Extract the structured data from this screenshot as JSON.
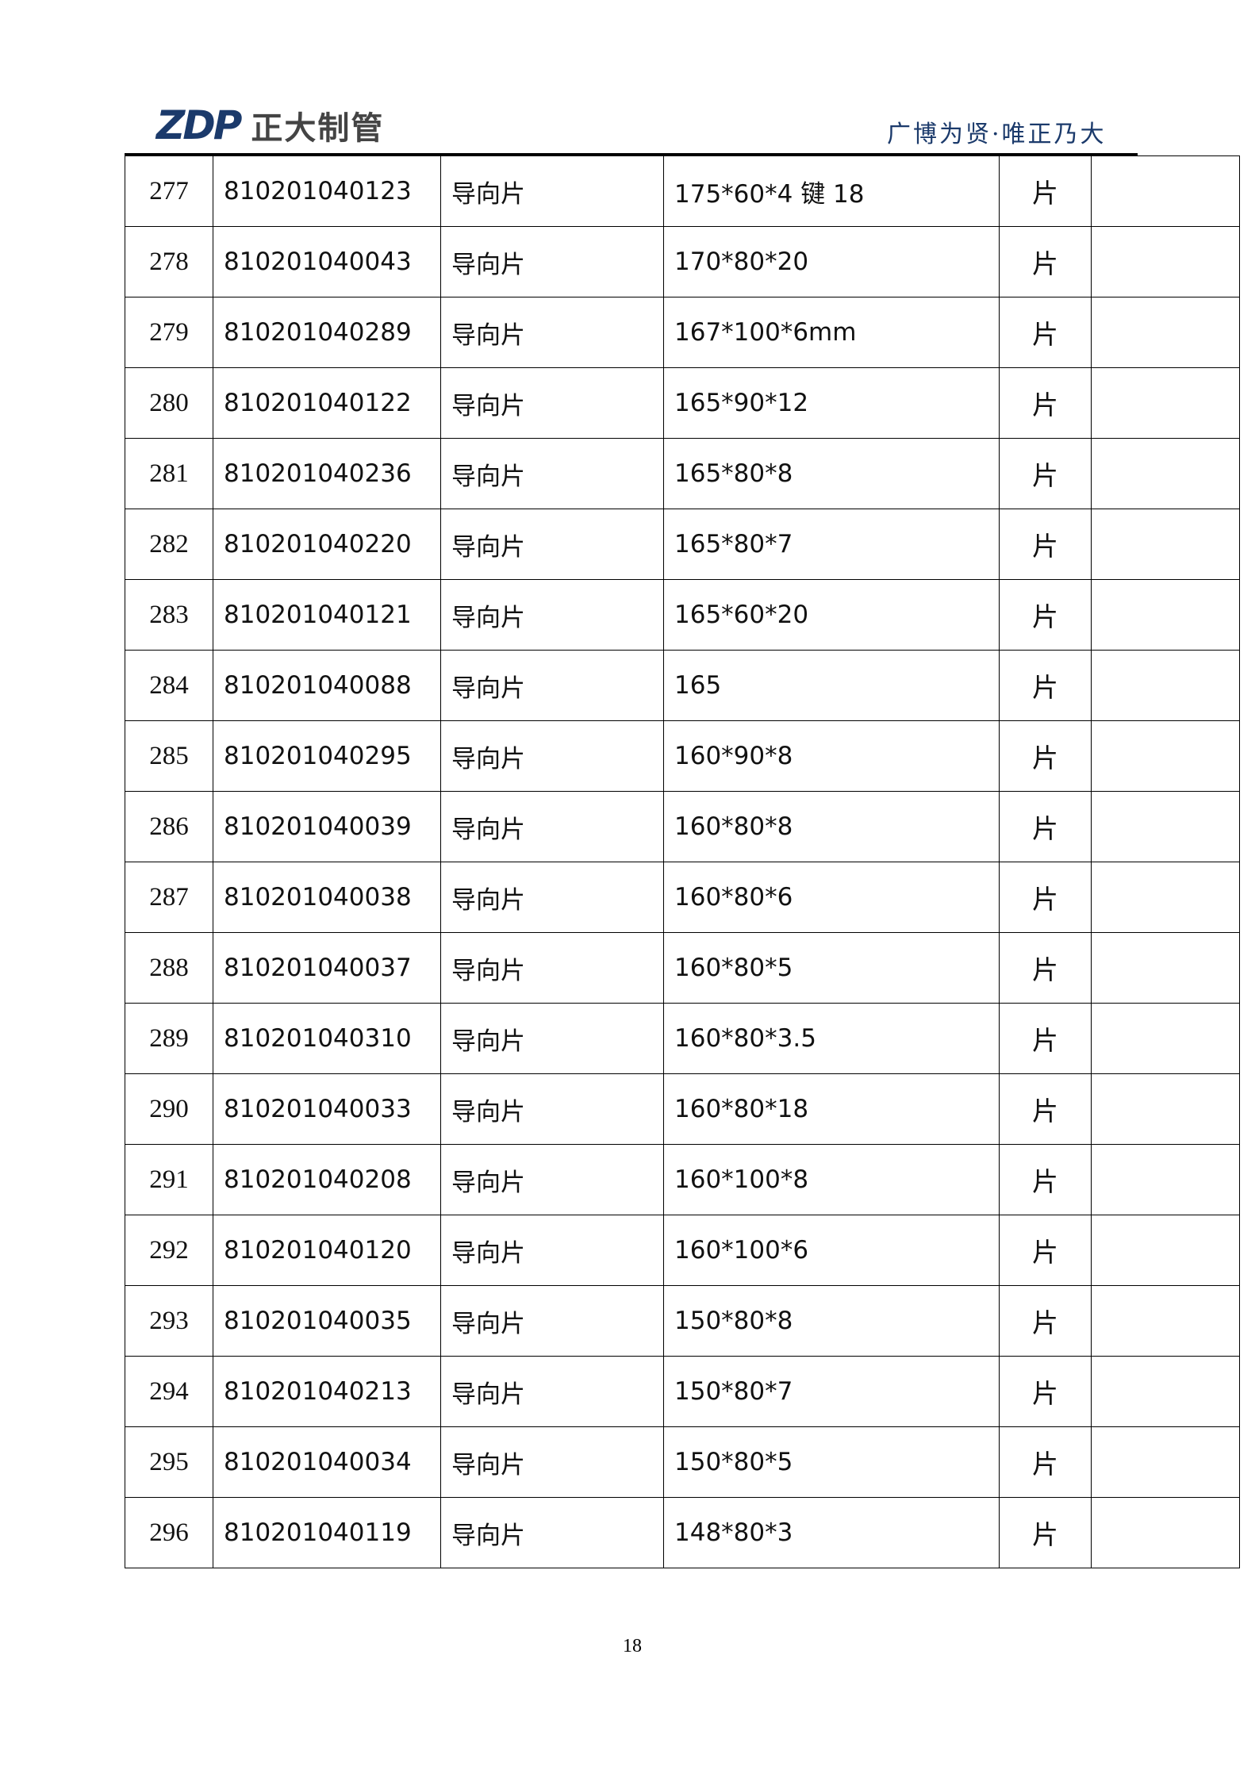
{
  "header": {
    "logo_mark": "ZDP",
    "logo_text": "正大制管",
    "slogan": "广博为贤·唯正乃大",
    "brand_color": "#1b3a6b"
  },
  "table": {
    "rows": [
      {
        "no": "277",
        "code": "810201040123",
        "name": "导向片",
        "spec": "175*60*4 键 18",
        "unit": "片",
        "note": ""
      },
      {
        "no": "278",
        "code": "810201040043",
        "name": "导向片",
        "spec": "170*80*20",
        "unit": "片",
        "note": ""
      },
      {
        "no": "279",
        "code": "810201040289",
        "name": "导向片",
        "spec": "167*100*6mm",
        "unit": "片",
        "note": ""
      },
      {
        "no": "280",
        "code": "810201040122",
        "name": "导向片",
        "spec": "165*90*12",
        "unit": "片",
        "note": ""
      },
      {
        "no": "281",
        "code": "810201040236",
        "name": "导向片",
        "spec": "165*80*8",
        "unit": "片",
        "note": ""
      },
      {
        "no": "282",
        "code": "810201040220",
        "name": "导向片",
        "spec": "165*80*7",
        "unit": "片",
        "note": ""
      },
      {
        "no": "283",
        "code": "810201040121",
        "name": "导向片",
        "spec": "165*60*20",
        "unit": "片",
        "note": ""
      },
      {
        "no": "284",
        "code": "810201040088",
        "name": "导向片",
        "spec": "165",
        "unit": "片",
        "note": ""
      },
      {
        "no": "285",
        "code": "810201040295",
        "name": "导向片",
        "spec": "160*90*8",
        "unit": "片",
        "note": ""
      },
      {
        "no": "286",
        "code": "810201040039",
        "name": "导向片",
        "spec": "160*80*8",
        "unit": "片",
        "note": ""
      },
      {
        "no": "287",
        "code": "810201040038",
        "name": "导向片",
        "spec": "160*80*6",
        "unit": "片",
        "note": ""
      },
      {
        "no": "288",
        "code": "810201040037",
        "name": "导向片",
        "spec": "160*80*5",
        "unit": "片",
        "note": ""
      },
      {
        "no": "289",
        "code": "810201040310",
        "name": "导向片",
        "spec": "160*80*3.5",
        "unit": "片",
        "note": ""
      },
      {
        "no": "290",
        "code": "810201040033",
        "name": "导向片",
        "spec": "160*80*18",
        "unit": "片",
        "note": ""
      },
      {
        "no": "291",
        "code": "810201040208",
        "name": "导向片",
        "spec": "160*100*8",
        "unit": "片",
        "note": ""
      },
      {
        "no": "292",
        "code": "810201040120",
        "name": "导向片",
        "spec": "160*100*6",
        "unit": "片",
        "note": ""
      },
      {
        "no": "293",
        "code": "810201040035",
        "name": "导向片",
        "spec": "150*80*8",
        "unit": "片",
        "note": ""
      },
      {
        "no": "294",
        "code": "810201040213",
        "name": "导向片",
        "spec": "150*80*7",
        "unit": "片",
        "note": ""
      },
      {
        "no": "295",
        "code": "810201040034",
        "name": "导向片",
        "spec": "150*80*5",
        "unit": "片",
        "note": ""
      },
      {
        "no": "296",
        "code": "810201040119",
        "name": "导向片",
        "spec": "148*80*3",
        "unit": "片",
        "note": ""
      }
    ]
  },
  "footer": {
    "page_number": "18"
  }
}
